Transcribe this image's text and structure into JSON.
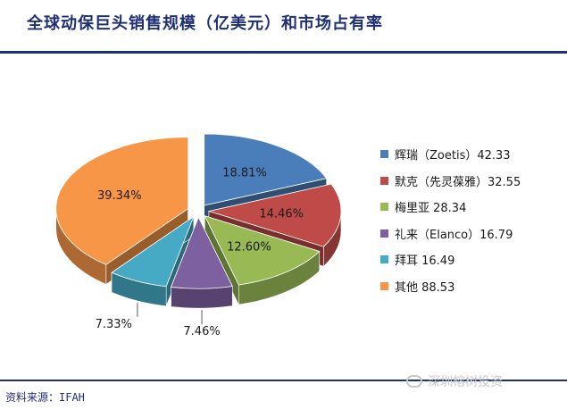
{
  "header": {
    "title": "全球动保巨头销售规模（亿美元）和市场占有率"
  },
  "footer": {
    "source": "资料来源：IFAH",
    "watermark": "深圳榕树投资"
  },
  "chart_data": {
    "type": "pie",
    "style": "3d-exploded",
    "slices": [
      {
        "label": "辉瑞（Zoetis）42.33",
        "value": 42.33,
        "percent_label": "18.81%",
        "color": "#4a7ebb"
      },
      {
        "label": "默克（先灵葆雅）32.55",
        "value": 32.55,
        "percent_label": "14.46%",
        "color": "#be4b48"
      },
      {
        "label": "梅里亚 28.34",
        "value": 28.34,
        "percent_label": "12.60%",
        "color": "#98b954"
      },
      {
        "label": "礼来（Elanco）16.79",
        "value": 16.79,
        "percent_label": "7.46%",
        "color": "#7d60a0"
      },
      {
        "label": "拜耳 16.49",
        "value": 16.49,
        "percent_label": "7.33%",
        "color": "#46aac5"
      },
      {
        "label": "其他 88.53",
        "value": 88.53,
        "percent_label": "39.34%",
        "color": "#f79646"
      }
    ],
    "legend_position": "right"
  }
}
